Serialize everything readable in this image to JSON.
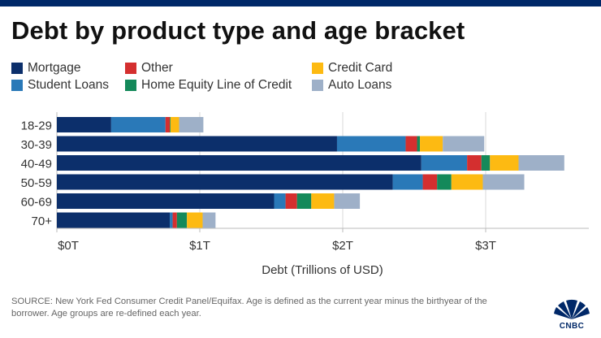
{
  "header": {
    "title": "Debt by product type and age bracket"
  },
  "footer": {
    "source": "SOURCE: New York Fed Consumer Credit Panel/Equifax. Age is defined as the current year minus the birthyear of the borrower. Age groups are re-defined each year.",
    "logo_text": "CNBC"
  },
  "chart_data": {
    "type": "bar",
    "orientation": "horizontal",
    "stacked": true,
    "title": "Debt by product type and age bracket",
    "xlabel": "Debt (Trillions of USD)",
    "ylabel": "",
    "xlim": [
      0,
      3.6
    ],
    "x_ticks": [
      0,
      1,
      2,
      3
    ],
    "x_tick_labels": [
      "$0T",
      "$1T",
      "$2T",
      "$3T"
    ],
    "grid": "vertical",
    "legend_placement": "top",
    "categories": [
      "18-29",
      "30-39",
      "40-49",
      "50-59",
      "60-69",
      "70+"
    ],
    "series": [
      {
        "name": "Mortgage",
        "color": "#0c2f6b",
        "values": [
          0.38,
          1.96,
          2.55,
          2.35,
          1.52,
          0.79
        ]
      },
      {
        "name": "Student Loans",
        "color": "#2a79b8",
        "values": [
          0.38,
          0.48,
          0.32,
          0.21,
          0.08,
          0.02
        ]
      },
      {
        "name": "Other",
        "color": "#d42f2f",
        "values": [
          0.03,
          0.08,
          0.1,
          0.1,
          0.08,
          0.03
        ]
      },
      {
        "name": "Home Equity Line of Credit",
        "color": "#14895a",
        "values": [
          0.005,
          0.02,
          0.06,
          0.1,
          0.1,
          0.07
        ]
      },
      {
        "name": "Credit Card",
        "color": "#fdba12",
        "values": [
          0.06,
          0.16,
          0.2,
          0.22,
          0.16,
          0.11
        ]
      },
      {
        "name": "Auto Loans",
        "color": "#9eb0c8",
        "values": [
          0.17,
          0.29,
          0.32,
          0.29,
          0.18,
          0.09
        ]
      }
    ]
  }
}
